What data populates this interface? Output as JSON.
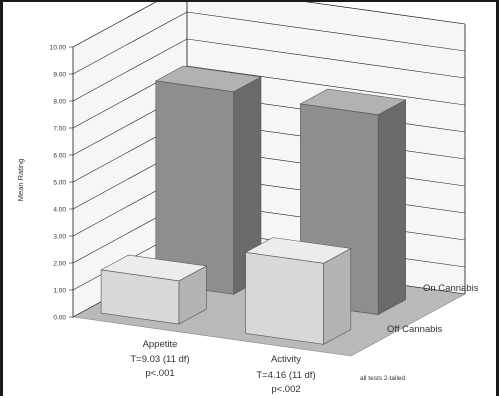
{
  "chart_data": {
    "type": "bar",
    "title": "",
    "ylabel": "Mean Rating",
    "ylim": [
      0,
      10
    ],
    "ytick_labels": [
      "0.00",
      "1.00",
      "2.00",
      "3.00",
      "4.00",
      "5.00",
      "6.00",
      "7.00",
      "8.00",
      "9.00",
      "10.00"
    ],
    "categories": [
      "Appetite",
      "Activity"
    ],
    "category_stats": [
      [
        "T=9.03 (11 df)",
        "p<.001"
      ],
      [
        "T=4.16 (11 df)",
        "p<.002"
      ]
    ],
    "series": [
      {
        "name": "Off Cannabis",
        "values": [
          1.6,
          3.0
        ]
      },
      {
        "name": "On Cannabis",
        "values": [
          7.5,
          7.4
        ]
      }
    ],
    "note": "all tests 2-tailed",
    "grid": true,
    "legend_placement": "right (depth-axis labels)",
    "colors": {
      "off_front": "#d8d8d8",
      "off_top": "#ececec",
      "off_side": "#b4b4b4",
      "on_front": "#8e8e8e",
      "on_top": "#b2b2b2",
      "on_side": "#6a6a6a",
      "floor": "#b9b9b9",
      "wall": "#f6f6f6"
    }
  }
}
